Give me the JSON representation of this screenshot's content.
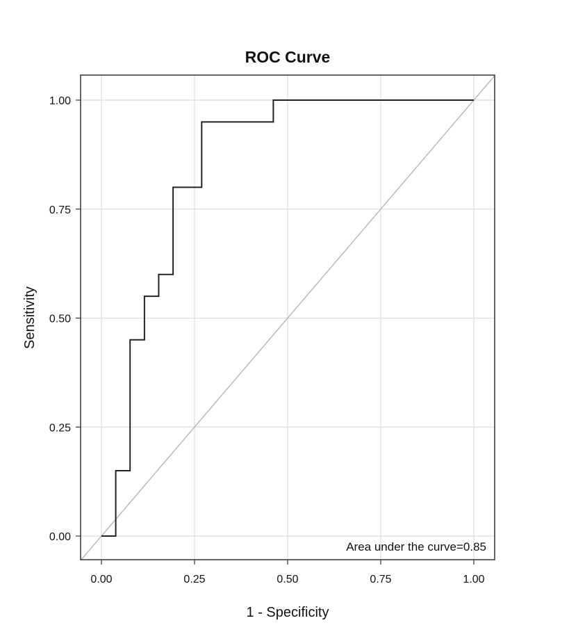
{
  "chart_data": {
    "type": "line",
    "title": "ROC Curve",
    "xlabel": "1 - Specificity",
    "ylabel": "Sensitivity",
    "xlim": [
      0,
      1
    ],
    "ylim": [
      0,
      1
    ],
    "x_ticks": [
      "0.00",
      "0.25",
      "0.50",
      "0.75",
      "1.00"
    ],
    "y_ticks": [
      "0.00",
      "0.25",
      "0.50",
      "0.75",
      "1.00"
    ],
    "grid": true,
    "series": [
      {
        "style": "step",
        "color": "#222222",
        "x": [
          0,
          0.0385,
          0.0385,
          0.0769,
          0.0769,
          0.1154,
          0.1154,
          0.1538,
          0.1538,
          0.1923,
          0.1923,
          0.2692,
          0.2692,
          0.4615,
          0.4615,
          1.0
        ],
        "y": [
          0,
          0,
          0.15,
          0.15,
          0.45,
          0.45,
          0.55,
          0.55,
          0.6,
          0.6,
          0.8,
          0.8,
          0.95,
          0.95,
          1.0,
          1.0
        ]
      },
      {
        "style": "reference-diagonal",
        "color": "#b5b5b5",
        "x": [
          0,
          1
        ],
        "y": [
          0,
          1
        ]
      }
    ],
    "annotation": "Area under the curve=0.85",
    "colors": {
      "curve": "#222222",
      "diagonal": "#b5b5b5",
      "grid": "#dcdcdc",
      "frame": "#333333"
    }
  }
}
